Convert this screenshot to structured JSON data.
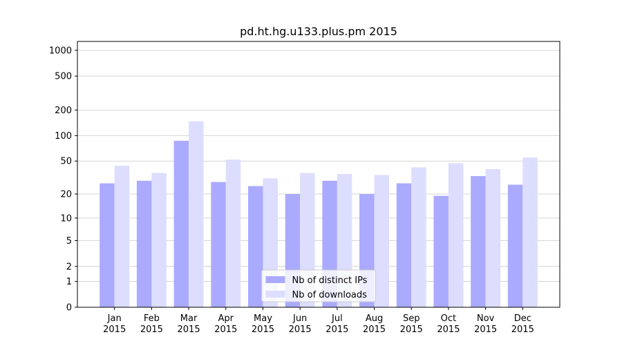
{
  "chart_data": {
    "type": "bar",
    "title": "pd.ht.hg.u133.plus.pm 2015",
    "categories": [
      "Jan 2015",
      "Feb 2015",
      "Mar 2015",
      "Apr 2015",
      "May 2015",
      "Jun 2015",
      "Jul 2015",
      "Aug 2015",
      "Sep 2015",
      "Oct 2015",
      "Nov 2015",
      "Dec 2015"
    ],
    "series": [
      {
        "name": "Nb of distinct IPs",
        "color": "#aaaaff",
        "values": [
          27,
          29,
          87,
          28,
          25,
          20,
          29,
          20,
          27,
          19,
          33,
          26
        ]
      },
      {
        "name": "Nb of downloads",
        "color": "#ddddff",
        "values": [
          44,
          36,
          147,
          52,
          31,
          36,
          35,
          34,
          42,
          47,
          40,
          55
        ]
      }
    ],
    "yscale": "log1p",
    "ylim": [
      0,
      1270
    ],
    "yticks": [
      0,
      1,
      2,
      5,
      10,
      20,
      50,
      100,
      200,
      500,
      1000
    ],
    "grid": true,
    "legend": "lower center"
  }
}
